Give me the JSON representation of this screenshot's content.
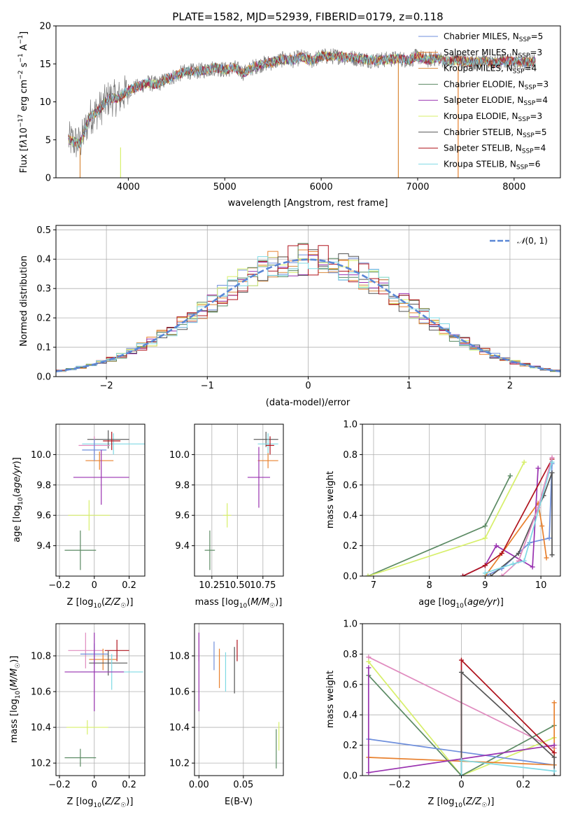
{
  "colors": {
    "Chabrier MILES": "#6f8fdc",
    "Salpeter MILES": "#e8802d",
    "Kroupa MILES": "#d98a3c",
    "Chabrier ELODIE": "#5b8a63",
    "Salpeter ELODIE": "#9932b0",
    "Kroupa ELODIE": "#d7ef6a",
    "Chabrier STELIB": "#555555",
    "Salpeter STELIB": "#b0141e",
    "Kroupa STELIB": "#7fd9e4",
    "pink": "#e08bbf"
  },
  "chart_data": [
    {
      "type": "line",
      "title": "PLATE=1582, MJD=52939, FIBERID=0179, z=0.118",
      "xlabel": "wavelength [Angstrom, rest frame]",
      "ylabel": "Flux [f_λ10^-17 erg cm^-2 s^-1 A^-1]",
      "xlim": [
        3250,
        8480
      ],
      "ylim": [
        0,
        20
      ],
      "xticks": [
        4000,
        5000,
        6000,
        7000,
        8000
      ],
      "yticks": [
        0,
        5,
        10,
        15,
        20
      ],
      "legend_loc": "top-right",
      "series": [
        {
          "name": "Chabrier MILES, N_SSP=5"
        },
        {
          "name": "Salpeter MILES, N_SSP=3"
        },
        {
          "name": "Kroupa MILES, N_SSP=4"
        },
        {
          "name": "Chabrier ELODIE, N_SSP=3"
        },
        {
          "name": "Salpeter ELODIE, N_SSP=4"
        },
        {
          "name": "Kroupa ELODIE, N_SSP=3"
        },
        {
          "name": "Chabrier STELIB, N_SSP=5"
        },
        {
          "name": "Salpeter STELIB, N_SSP=4"
        },
        {
          "name": "Kroupa STELIB, N_SSP=6"
        }
      ],
      "continuum": [
        [
          3380,
          5
        ],
        [
          3500,
          4.5
        ],
        [
          3600,
          8
        ],
        [
          3700,
          9
        ],
        [
          3800,
          10.5
        ],
        [
          3900,
          10.5
        ],
        [
          4000,
          11.5
        ],
        [
          4100,
          12
        ],
        [
          4200,
          12.5
        ],
        [
          4300,
          12.3
        ],
        [
          4400,
          13
        ],
        [
          4500,
          13.5
        ],
        [
          4600,
          14
        ],
        [
          4700,
          14
        ],
        [
          4800,
          14.2
        ],
        [
          4900,
          14.5
        ],
        [
          5000,
          14.2
        ],
        [
          5100,
          14.5
        ],
        [
          5200,
          13.8
        ],
        [
          5300,
          14.6
        ],
        [
          5400,
          15
        ],
        [
          5500,
          15.2
        ],
        [
          5600,
          15.6
        ],
        [
          5700,
          15.5
        ],
        [
          5800,
          15.9
        ],
        [
          5900,
          15.4
        ],
        [
          6000,
          16
        ],
        [
          6100,
          16
        ],
        [
          6200,
          16
        ],
        [
          6300,
          15.8
        ],
        [
          6400,
          15.7
        ],
        [
          6500,
          15.5
        ],
        [
          6600,
          15.5
        ],
        [
          6700,
          15.6
        ],
        [
          6800,
          15.7
        ],
        [
          6900,
          15.5
        ],
        [
          7000,
          16
        ],
        [
          7100,
          15.5
        ],
        [
          7200,
          15.8
        ],
        [
          7300,
          15.3
        ],
        [
          7400,
          15.5
        ],
        [
          7500,
          15.3
        ],
        [
          7600,
          15.2
        ],
        [
          7700,
          15.4
        ],
        [
          7800,
          15.1
        ],
        [
          7900,
          15.4
        ],
        [
          8000,
          15.3
        ],
        [
          8100,
          15.2
        ],
        [
          8220,
          15.3
        ]
      ]
    },
    {
      "type": "line",
      "xlabel": "(data-model)/error",
      "ylabel": "Normed distribution",
      "xlim": [
        -2.5,
        2.5
      ],
      "ylim": [
        0,
        0.515
      ],
      "xticks": [
        -2,
        -1,
        0,
        1,
        2
      ],
      "yticks": [
        0.0,
        0.1,
        0.2,
        0.3,
        0.4,
        0.5
      ],
      "grid": true,
      "legend_loc": "top-right",
      "legend": "N(0,1)",
      "bin_width": 0.1
    },
    {
      "type": "scatter",
      "xlabel": "Z [log10(Z/Z☉)]",
      "ylabel": "age [log10(age/yr)]",
      "xlim": [
        -0.22,
        0.29
      ],
      "ylim": [
        9.2,
        10.2
      ],
      "xticks": [
        -0.2,
        0.0,
        0.2
      ],
      "yticks": [
        9.4,
        9.6,
        9.8,
        10.0
      ],
      "grid": true,
      "points": [
        {
          "color": "#7fd9e4",
          "x": 0.11,
          "xerr": 0.18,
          "y": 10.07,
          "yerr": 0.07
        },
        {
          "color": "#555555",
          "x": 0.08,
          "xerr": 0.12,
          "y": 10.1,
          "yerr": 0.06
        },
        {
          "color": "#b0141e",
          "x": 0.1,
          "xerr": 0.05,
          "y": 10.09,
          "yerr": 0.06
        },
        {
          "color": "#e08bbf",
          "x": 0.0,
          "xerr": 0.09,
          "y": 10.06,
          "yerr": 0.06
        },
        {
          "color": "#e8802d",
          "x": 0.03,
          "xerr": 0.08,
          "y": 9.96,
          "yerr": 0.06
        },
        {
          "color": "#6f8fdc",
          "x": 0.0,
          "xerr": 0.07,
          "y": 10.03,
          "yerr": 0.07
        },
        {
          "color": "#9932b0",
          "x": 0.04,
          "xerr": 0.16,
          "y": 9.85,
          "yerr": 0.18
        },
        {
          "color": "#d7ef6a",
          "x": -0.03,
          "xerr": 0.12,
          "y": 9.6,
          "yerr": 0.1
        },
        {
          "color": "#5b8a63",
          "x": -0.08,
          "xerr": 0.09,
          "y": 9.37,
          "yerr": 0.13
        }
      ]
    },
    {
      "type": "scatter",
      "xlabel": "mass [log10(M/M☉)]",
      "xlim": [
        10.08,
        10.95
      ],
      "ylim": [
        9.2,
        10.2
      ],
      "xticks": [
        10.25,
        10.5,
        10.75
      ],
      "tick_labels": [
        "10.25",
        "10.50",
        "10.75"
      ],
      "yticks": [
        9.4,
        9.6,
        9.8,
        10.0
      ],
      "grid": true,
      "points": [
        {
          "color": "#555555",
          "x": 10.78,
          "xerr": 0.12,
          "y": 10.1,
          "yerr": 0.05
        },
        {
          "color": "#7fd9e4",
          "x": 10.8,
          "xerr": 0.1,
          "y": 10.07,
          "yerr": 0.07
        },
        {
          "color": "#b0141e",
          "x": 10.82,
          "xerr": 0.04,
          "y": 10.06,
          "yerr": 0.06
        },
        {
          "color": "#e8802d",
          "x": 10.8,
          "xerr": 0.1,
          "y": 9.96,
          "yerr": 0.05
        },
        {
          "color": "#9932b0",
          "x": 10.71,
          "xerr": 0.11,
          "y": 9.85,
          "yerr": 0.2
        },
        {
          "color": "#d7ef6a",
          "x": 10.4,
          "xerr": 0.04,
          "y": 9.6,
          "yerr": 0.08
        },
        {
          "color": "#5b8a63",
          "x": 10.23,
          "xerr": 0.05,
          "y": 9.37,
          "yerr": 0.13
        }
      ]
    },
    {
      "type": "line",
      "xlabel": "age [log10(age/yr)]",
      "ylabel": "mass weight",
      "xlim": [
        6.8,
        10.35
      ],
      "ylim": [
        0,
        1
      ],
      "xticks": [
        7,
        8,
        9,
        10
      ],
      "yticks": [
        0.0,
        0.2,
        0.4,
        0.6,
        0.8,
        1.0
      ],
      "grid": true,
      "series": [
        {
          "color": "#5b8a63",
          "x": [
            6.9,
            9.0,
            9.45
          ],
          "y": [
            0.0,
            0.33,
            0.66
          ]
        },
        {
          "color": "#d7ef6a",
          "x": [
            6.9,
            9.0,
            9.7
          ],
          "y": [
            0.0,
            0.25,
            0.75
          ]
        },
        {
          "color": "#6f8fdc",
          "x": [
            9.0,
            9.3,
            9.8,
            10.15,
            10.2
          ],
          "y": [
            0.0,
            0.05,
            0.22,
            0.25,
            0.74
          ]
        },
        {
          "color": "#e8802d",
          "x": [
            9.0,
            9.3,
            9.95,
            10.02,
            10.1
          ],
          "y": [
            0.0,
            0.15,
            0.48,
            0.33,
            0.12
          ]
        },
        {
          "color": "#9932b0",
          "x": [
            8.6,
            9.0,
            9.2,
            9.85,
            9.95
          ],
          "y": [
            0.0,
            0.07,
            0.2,
            0.06,
            0.71
          ]
        },
        {
          "color": "#b0141e",
          "x": [
            8.6,
            9.0,
            9.3,
            10.2
          ],
          "y": [
            0.0,
            0.07,
            0.15,
            0.77
          ]
        },
        {
          "color": "#555555",
          "x": [
            9.1,
            9.6,
            10.05,
            10.2,
            10.2
          ],
          "y": [
            0.0,
            0.15,
            0.53,
            0.68,
            0.14
          ]
        },
        {
          "color": "#e08bbf",
          "x": [
            9.3,
            9.6,
            9.95,
            10.2
          ],
          "y": [
            0.0,
            0.1,
            0.45,
            0.78
          ]
        },
        {
          "color": "#7fd9e4",
          "x": [
            9.0,
            9.5,
            9.7,
            10.2
          ],
          "y": [
            0.02,
            0.08,
            0.1,
            0.75
          ]
        }
      ]
    },
    {
      "type": "scatter",
      "xlabel": "Z [log10(Z/Z☉)]",
      "ylabel": "mass [log10(M/M☉)]",
      "xlim": [
        -0.22,
        0.29
      ],
      "ylim": [
        10.13,
        10.98
      ],
      "xticks": [
        -0.2,
        0.0,
        0.2
      ],
      "yticks": [
        10.2,
        10.4,
        10.6,
        10.8
      ],
      "grid": true,
      "points": [
        {
          "color": "#e08bbf",
          "x": -0.05,
          "xerr": 0.1,
          "y": 10.83,
          "yerr": 0.1
        },
        {
          "color": "#b0141e",
          "x": 0.13,
          "xerr": 0.07,
          "y": 10.83,
          "yerr": 0.06
        },
        {
          "color": "#e8802d",
          "x": 0.05,
          "xerr": 0.08,
          "y": 10.78,
          "yerr": 0.06
        },
        {
          "color": "#6f8fdc",
          "x": 0.0,
          "xerr": 0.08,
          "y": 10.81,
          "yerr": 0.06
        },
        {
          "color": "#555555",
          "x": 0.08,
          "xerr": 0.11,
          "y": 10.76,
          "yerr": 0.07
        },
        {
          "color": "#7fd9e4",
          "x": 0.1,
          "xerr": 0.18,
          "y": 10.71,
          "yerr": 0.1
        },
        {
          "color": "#9932b0",
          "x": 0.0,
          "xerr": 0.17,
          "y": 10.71,
          "yerr": 0.22
        },
        {
          "color": "#d7ef6a",
          "x": -0.04,
          "xerr": 0.12,
          "y": 10.4,
          "yerr": 0.04
        },
        {
          "color": "#5b8a63",
          "x": -0.08,
          "xerr": 0.09,
          "y": 10.23,
          "yerr": 0.05
        }
      ]
    },
    {
      "type": "scatter",
      "xlabel": "E(B-V)",
      "xlim": [
        -0.005,
        0.095
      ],
      "ylim": [
        10.13,
        10.98
      ],
      "xticks": [
        0.0,
        0.05
      ],
      "tick_labels": [
        "0.00",
        "0.05"
      ],
      "yticks": [
        10.2,
        10.4,
        10.6,
        10.8
      ],
      "grid": true,
      "points": [
        {
          "color": "#e08bbf",
          "x": 0.0,
          "y": 10.85,
          "yerr": 0.08
        },
        {
          "color": "#9932b0",
          "x": 0.0,
          "y": 10.71,
          "yerr": 0.22
        },
        {
          "color": "#6f8fdc",
          "x": 0.017,
          "y": 10.8,
          "yerr": 0.08
        },
        {
          "color": "#e8802d",
          "x": 0.023,
          "y": 10.73,
          "yerr": 0.11
        },
        {
          "color": "#7fd9e4",
          "x": 0.03,
          "y": 10.71,
          "yerr": 0.11
        },
        {
          "color": "#555555",
          "x": 0.04,
          "y": 10.72,
          "yerr": 0.13
        },
        {
          "color": "#b0141e",
          "x": 0.043,
          "y": 10.83,
          "yerr": 0.06
        },
        {
          "color": "#d7ef6a",
          "x": 0.09,
          "y": 10.35,
          "yerr": 0.08
        },
        {
          "color": "#5b8a63",
          "x": 0.087,
          "y": 10.28,
          "yerr": 0.11
        }
      ]
    },
    {
      "type": "line",
      "xlabel": "Z [log10(Z/Z☉)]",
      "ylabel": "mass weight",
      "xlim": [
        -0.32,
        0.32
      ],
      "ylim": [
        0,
        1
      ],
      "xticks": [
        -0.2,
        0.0,
        0.2
      ],
      "yticks": [
        0.0,
        0.2,
        0.4,
        0.6,
        0.8,
        1.0
      ],
      "grid": true,
      "series": [
        {
          "color": "#e08bbf",
          "x": [
            -0.3,
            0.3
          ],
          "y": [
            0.78,
            0.18
          ]
        },
        {
          "color": "#d7ef6a",
          "x": [
            -0.3,
            0.0,
            0.3
          ],
          "y": [
            0.75,
            0.0,
            0.25
          ]
        },
        {
          "color": "#5b8a63",
          "x": [
            -0.3,
            0.0,
            0.3
          ],
          "y": [
            0.66,
            0.0,
            0.33
          ]
        },
        {
          "color": "#6f8fdc",
          "x": [
            -0.3,
            0.3
          ],
          "y": [
            0.24,
            0.07
          ]
        },
        {
          "color": "#e8802d",
          "x": [
            -0.3,
            0.3,
            0.3
          ],
          "y": [
            0.12,
            0.07,
            0.48
          ]
        },
        {
          "color": "#9932b0",
          "x": [
            -0.3,
            -0.3,
            0.3
          ],
          "y": [
            0.71,
            0.02,
            0.2
          ]
        },
        {
          "color": "#b0141e",
          "x": [
            0.0,
            0.0,
            0.3
          ],
          "y": [
            0.0,
            0.76,
            0.15
          ]
        },
        {
          "color": "#555555",
          "x": [
            0.0,
            0.0,
            0.3,
            0.3
          ],
          "y": [
            0.0,
            0.68,
            0.12,
            0.0
          ]
        },
        {
          "color": "#7fd9e4",
          "x": [
            0.0,
            0.0,
            0.3
          ],
          "y": [
            0.0,
            0.1,
            0.03
          ]
        }
      ]
    }
  ]
}
